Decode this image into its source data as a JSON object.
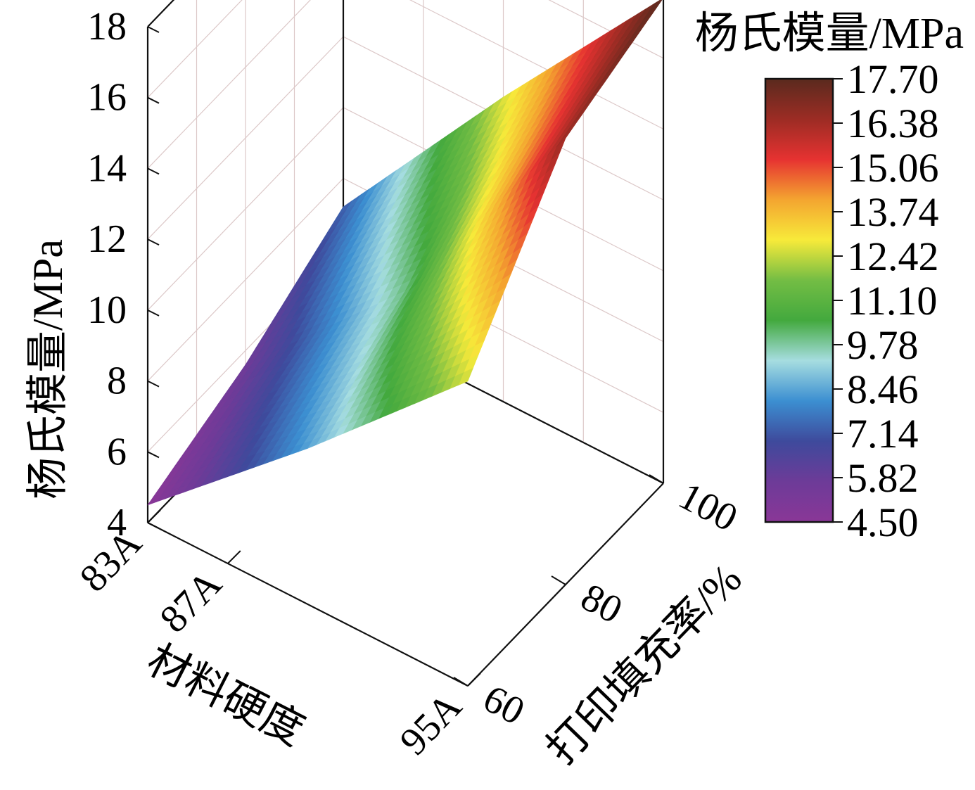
{
  "chart_data": {
    "type": "surface3d",
    "title": "",
    "zlabel": "杨氏模量/MPa",
    "xlabel": "材料硬度",
    "ylabel": "打印填充率/%",
    "x_ticks": [
      "83A",
      "87A",
      "95A"
    ],
    "y_ticks": [
      "60",
      "80",
      "100"
    ],
    "z_ticks": [
      "4",
      "6",
      "8",
      "10",
      "12",
      "14",
      "16",
      "18"
    ],
    "zlim": [
      4,
      18
    ],
    "grid": true,
    "colorbar": {
      "title": "杨氏模量/MPa",
      "labels": [
        "17.70",
        "16.38",
        "15.06",
        "13.74",
        "12.42",
        "11.10",
        "9.78",
        "8.46",
        "7.14",
        "5.82",
        "4.50"
      ],
      "range": [
        4.5,
        17.7
      ],
      "colormap": "rainbow",
      "stops": [
        "#5a2a1e",
        "#9c2c24",
        "#e63231",
        "#f4a530",
        "#f7ea3a",
        "#73bd44",
        "#43a93e",
        "#a6dde0",
        "#3c8fd1",
        "#3e4a9c",
        "#6d3b98",
        "#8a3797"
      ]
    },
    "x_values": [
      "83A",
      "87A",
      "95A"
    ],
    "y_values": [
      60,
      80,
      100
    ],
    "z_values": [
      [
        4.5,
        8.4,
        12.6
      ],
      [
        5.6,
        10.0,
        16.6
      ],
      [
        7.2,
        12.6,
        17.7
      ]
    ]
  }
}
